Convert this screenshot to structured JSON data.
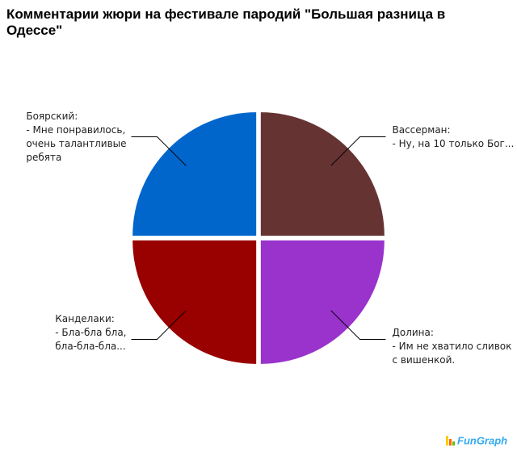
{
  "chart_data": {
    "type": "pie",
    "title": "Комментарии жюри на фестивале пародий \"Большая разница в Одессе\"",
    "categories": [
      [
        "Вассерман:",
        "- Ну, на 10 только Бог..."
      ],
      [
        "Долина:",
        "- Им не хватило сливок",
        "с вишенкой."
      ],
      [
        "Канделаки:",
        "- Бла-бла бла,",
        "бла-бла-бла..."
      ],
      [
        "Боярский:",
        "- Мне понравилось,",
        "очень талантливые",
        "ребята"
      ]
    ],
    "values": [
      25,
      25,
      25,
      25
    ],
    "colors": [
      "#663333",
      "#9933cc",
      "#990000",
      "#0066cc"
    ],
    "watermark": "FunGraph"
  }
}
